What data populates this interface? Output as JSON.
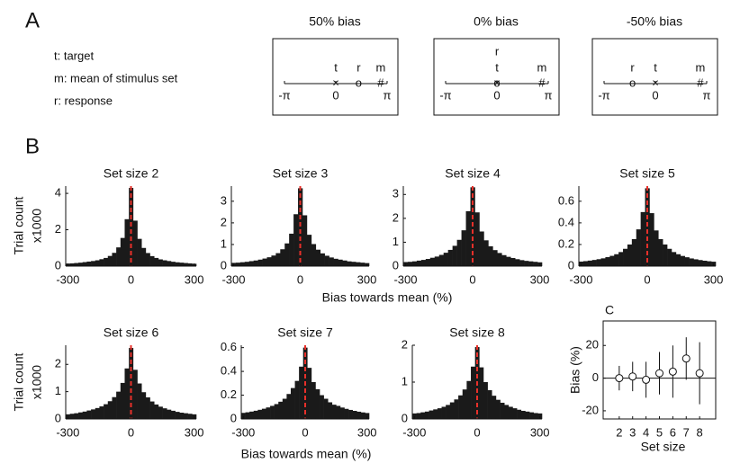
{
  "panel_a": {
    "label": "A",
    "legend": [
      {
        "text": "t: target",
        "color": "#e8302a"
      },
      {
        "text": "m: mean of stimulus set",
        "color": "#22b14c"
      },
      {
        "text": "r: response",
        "color": "#4a7ebb"
      }
    ],
    "diagrams": [
      {
        "title": "50% bias",
        "xlim": [
          -3.1416,
          3.1416
        ],
        "xticks": [
          {
            "value": -3.1416,
            "label": "-π"
          },
          0,
          {
            "value": 3.1416,
            "label": "π"
          }
        ],
        "markers": [
          {
            "letter": "t",
            "symbol": "×",
            "x": 0,
            "color": "#e8302a"
          },
          {
            "letter": "r",
            "symbol": "o",
            "x": 1.4,
            "color": "#4a7ebb"
          },
          {
            "letter": "m",
            "symbol": "#",
            "x": 2.75,
            "color": "#22b14c"
          }
        ]
      },
      {
        "title": "0% bias",
        "xlim": [
          -3.1416,
          3.1416
        ],
        "xticks": [
          {
            "value": -3.1416,
            "label": "-π"
          },
          0,
          {
            "value": 3.1416,
            "label": "π"
          }
        ],
        "markers": [
          {
            "letter": "t",
            "symbol": "×",
            "x": 0,
            "color": "#e8302a"
          },
          {
            "letter": "r",
            "symbol": "o",
            "x": 0,
            "color": "#4a7ebb"
          },
          {
            "letter": "m",
            "symbol": "#",
            "x": 2.75,
            "color": "#22b14c"
          }
        ]
      },
      {
        "title": "-50% bias",
        "xlim": [
          -3.1416,
          3.1416
        ],
        "xticks": [
          {
            "value": -3.1416,
            "label": "-π"
          },
          0,
          {
            "value": 3.1416,
            "label": "π"
          }
        ],
        "markers": [
          {
            "letter": "t",
            "symbol": "×",
            "x": 0,
            "color": "#e8302a"
          },
          {
            "letter": "r",
            "symbol": "o",
            "x": -1.4,
            "color": "#4a7ebb"
          },
          {
            "letter": "m",
            "symbol": "#",
            "x": 2.75,
            "color": "#22b14c"
          }
        ]
      }
    ]
  },
  "panel_b": {
    "label": "B",
    "rows": [
      {
        "xlabel": "Bias towards mean (%)",
        "ylabel": [
          "Trial count",
          "x1000"
        ]
      },
      {
        "xlabel": "Bias towards mean (%)",
        "ylabel": [
          "Trial count",
          "x1000"
        ]
      }
    ]
  },
  "panel_c": {
    "label": "C"
  },
  "chart_data": [
    {
      "type": "histogram",
      "title": "Set size 2",
      "color": "#1a1a1a",
      "vline": 0,
      "vline_color": "#e8302a",
      "bins": [
        -310,
        -290,
        -270,
        -250,
        -230,
        -210,
        -190,
        -170,
        -150,
        -130,
        -110,
        -90,
        -70,
        -50,
        -30,
        -10,
        10,
        30,
        50,
        70,
        90,
        110,
        130,
        150,
        170,
        190,
        210,
        230,
        250,
        270,
        290,
        310
      ],
      "values": [
        0.14,
        0.15,
        0.17,
        0.19,
        0.22,
        0.25,
        0.28,
        0.32,
        0.38,
        0.45,
        0.56,
        0.73,
        1.03,
        1.55,
        2.58,
        4.3,
        2.5,
        1.5,
        1.0,
        0.72,
        0.55,
        0.45,
        0.37,
        0.32,
        0.28,
        0.24,
        0.21,
        0.19,
        0.17,
        0.15,
        0.13
      ],
      "xlim": [
        -310,
        310
      ],
      "xticks": [
        -300,
        0,
        300
      ],
      "ylim": [
        0,
        4.4
      ],
      "yticks": [
        0,
        2,
        4
      ]
    },
    {
      "type": "histogram",
      "title": "Set size 3",
      "color": "#1a1a1a",
      "vline": 0,
      "vline_color": "#e8302a",
      "bins": [
        -310,
        -290,
        -270,
        -250,
        -230,
        -210,
        -190,
        -170,
        -150,
        -130,
        -110,
        -90,
        -70,
        -50,
        -30,
        -10,
        10,
        30,
        50,
        70,
        90,
        110,
        130,
        150,
        170,
        190,
        210,
        230,
        250,
        270,
        290,
        310
      ],
      "values": [
        0.15,
        0.16,
        0.18,
        0.2,
        0.23,
        0.26,
        0.3,
        0.35,
        0.41,
        0.49,
        0.6,
        0.78,
        1.05,
        1.5,
        2.4,
        3.6,
        2.35,
        1.45,
        1.02,
        0.76,
        0.59,
        0.48,
        0.4,
        0.34,
        0.3,
        0.26,
        0.22,
        0.2,
        0.18,
        0.16,
        0.14
      ],
      "xlim": [
        -310,
        310
      ],
      "xticks": [
        -300,
        0,
        300
      ],
      "ylim": [
        0,
        3.7
      ],
      "yticks": [
        0,
        1,
        2,
        3
      ]
    },
    {
      "type": "histogram",
      "title": "Set size 4",
      "color": "#1a1a1a",
      "vline": 0,
      "vline_color": "#e8302a",
      "bins": [
        -310,
        -290,
        -270,
        -250,
        -230,
        -210,
        -190,
        -170,
        -150,
        -130,
        -110,
        -90,
        -70,
        -50,
        -30,
        -10,
        10,
        30,
        50,
        70,
        90,
        110,
        130,
        150,
        170,
        190,
        210,
        230,
        250,
        270,
        290,
        310
      ],
      "values": [
        0.17,
        0.18,
        0.2,
        0.23,
        0.26,
        0.3,
        0.35,
        0.4,
        0.47,
        0.56,
        0.68,
        0.85,
        1.1,
        1.5,
        2.3,
        3.3,
        2.25,
        1.45,
        1.08,
        0.83,
        0.67,
        0.55,
        0.46,
        0.39,
        0.34,
        0.29,
        0.25,
        0.22,
        0.2,
        0.18,
        0.16
      ],
      "xlim": [
        -310,
        310
      ],
      "xticks": [
        -300,
        0,
        300
      ],
      "ylim": [
        0,
        3.35
      ],
      "yticks": [
        0,
        1,
        2,
        3
      ]
    },
    {
      "type": "histogram",
      "title": "Set size 5",
      "color": "#1a1a1a",
      "vline": 0,
      "vline_color": "#e8302a",
      "bins": [
        -310,
        -290,
        -270,
        -250,
        -230,
        -210,
        -190,
        -170,
        -150,
        -130,
        -110,
        -90,
        -70,
        -50,
        -30,
        -10,
        10,
        30,
        50,
        70,
        90,
        110,
        130,
        150,
        170,
        190,
        210,
        230,
        250,
        270,
        290,
        310
      ],
      "values": [
        0.042,
        0.046,
        0.051,
        0.057,
        0.064,
        0.072,
        0.083,
        0.095,
        0.11,
        0.13,
        0.16,
        0.2,
        0.25,
        0.34,
        0.5,
        0.72,
        0.49,
        0.33,
        0.25,
        0.2,
        0.16,
        0.13,
        0.11,
        0.094,
        0.082,
        0.071,
        0.063,
        0.056,
        0.05,
        0.045,
        0.041
      ],
      "xlim": [
        -310,
        310
      ],
      "xticks": [
        -300,
        0,
        300
      ],
      "ylim": [
        0,
        0.74
      ],
      "yticks": [
        0,
        0.2,
        0.4,
        0.6
      ]
    },
    {
      "type": "histogram",
      "title": "Set size 6",
      "color": "#1a1a1a",
      "vline": 0,
      "vline_color": "#e8302a",
      "bins": [
        -310,
        -290,
        -270,
        -250,
        -230,
        -210,
        -190,
        -170,
        -150,
        -130,
        -110,
        -90,
        -70,
        -50,
        -30,
        -10,
        10,
        30,
        50,
        70,
        90,
        110,
        130,
        150,
        170,
        190,
        210,
        230,
        250,
        270,
        290,
        310
      ],
      "values": [
        0.17,
        0.19,
        0.21,
        0.24,
        0.27,
        0.31,
        0.35,
        0.4,
        0.46,
        0.54,
        0.65,
        0.8,
        1.0,
        1.32,
        1.85,
        2.6,
        1.8,
        1.3,
        0.98,
        0.79,
        0.64,
        0.53,
        0.45,
        0.39,
        0.34,
        0.3,
        0.26,
        0.23,
        0.21,
        0.19,
        0.17
      ],
      "xlim": [
        -310,
        310
      ],
      "xticks": [
        -300,
        0,
        300
      ],
      "ylim": [
        0,
        2.7
      ],
      "yticks": [
        0,
        1,
        2
      ]
    },
    {
      "type": "histogram",
      "title": "Set size 7",
      "color": "#1a1a1a",
      "vline": 0,
      "vline_color": "#e8302a",
      "bins": [
        -310,
        -290,
        -270,
        -250,
        -230,
        -210,
        -190,
        -170,
        -150,
        -130,
        -110,
        -90,
        -70,
        -50,
        -30,
        -10,
        10,
        30,
        50,
        70,
        90,
        110,
        130,
        150,
        170,
        190,
        210,
        230,
        250,
        270,
        290,
        310
      ],
      "values": [
        0.051,
        0.056,
        0.062,
        0.069,
        0.077,
        0.086,
        0.097,
        0.11,
        0.125,
        0.145,
        0.17,
        0.21,
        0.26,
        0.32,
        0.44,
        0.6,
        0.43,
        0.31,
        0.25,
        0.2,
        0.17,
        0.14,
        0.12,
        0.11,
        0.096,
        0.085,
        0.076,
        0.068,
        0.061,
        0.055,
        0.05
      ],
      "xlim": [
        -310,
        310
      ],
      "xticks": [
        -300,
        0,
        300
      ],
      "ylim": [
        0,
        0.62
      ],
      "yticks": [
        0,
        0.2,
        0.4,
        0.6
      ]
    },
    {
      "type": "histogram",
      "title": "Set size 8",
      "color": "#1a1a1a",
      "vline": 0,
      "vline_color": "#e8302a",
      "bins": [
        -310,
        -290,
        -270,
        -250,
        -230,
        -210,
        -190,
        -170,
        -150,
        -130,
        -110,
        -90,
        -70,
        -50,
        -30,
        -10,
        10,
        30,
        50,
        70,
        90,
        110,
        130,
        150,
        170,
        190,
        210,
        230,
        250,
        270,
        290,
        310
      ],
      "values": [
        0.15,
        0.16,
        0.18,
        0.2,
        0.23,
        0.26,
        0.29,
        0.33,
        0.38,
        0.45,
        0.53,
        0.64,
        0.8,
        1.03,
        1.42,
        1.95,
        1.4,
        1.0,
        0.78,
        0.63,
        0.52,
        0.44,
        0.38,
        0.33,
        0.29,
        0.25,
        0.22,
        0.2,
        0.18,
        0.16,
        0.15
      ],
      "xlim": [
        -310,
        310
      ],
      "xticks": [
        -300,
        0,
        300
      ],
      "ylim": [
        0,
        2
      ],
      "yticks": [
        0,
        1,
        2
      ]
    },
    {
      "type": "errorbar",
      "xlabel": "Set size",
      "ylabel": "Bias (%)",
      "color": "#111111",
      "hline": 0,
      "x": [
        2,
        3,
        4,
        5,
        6,
        7,
        8
      ],
      "values": [
        0,
        1,
        -1,
        3,
        4,
        12,
        3
      ],
      "errors": [
        7.5,
        9,
        11,
        13,
        16,
        13,
        19
      ],
      "xlim": [
        0.8,
        9.2
      ],
      "xticks": [
        2,
        3,
        4,
        5,
        6,
        7,
        8
      ],
      "ylim": [
        -25,
        35
      ],
      "yticks": [
        -20,
        0,
        20
      ]
    }
  ]
}
